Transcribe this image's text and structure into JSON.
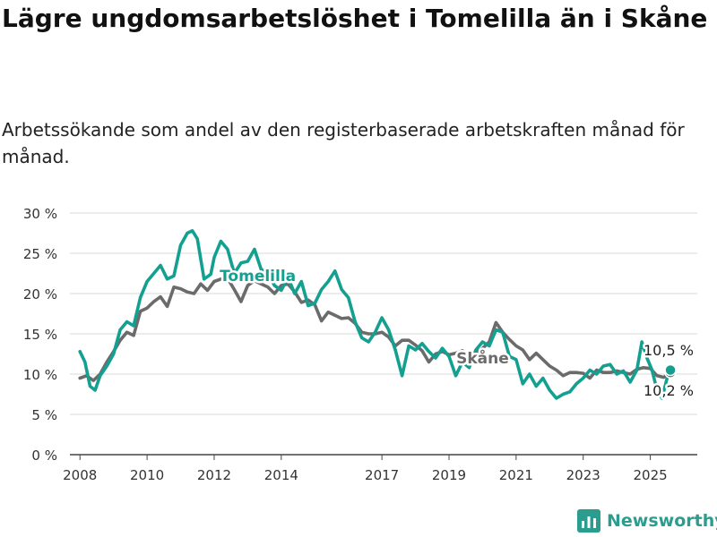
{
  "header": {
    "title": "Lägre ungdomsarbetslöshet i Tomelilla än i Skåne",
    "subtitle": "Arbetssökande som andel av den registerbaserade arbetskraften månad för månad."
  },
  "brand": {
    "name": "Newsworthy",
    "icon": "newsworthy-logo-icon"
  },
  "chart_data": {
    "type": "line",
    "title": "Lägre ungdomsarbetslöshet i Tomelilla än i Skåne",
    "subtitle": "Arbetssökande som andel av den registerbaserade arbetskraften månad för månad.",
    "xlim": [
      2007.7,
      2026.4
    ],
    "ylim": [
      0,
      30
    ],
    "y_ticks": [
      0,
      5,
      10,
      15,
      20,
      25,
      30
    ],
    "y_tick_labels": [
      "0 %",
      "5 %",
      "10 %",
      "15 %",
      "20 %",
      "25 %",
      "30 %"
    ],
    "x_ticks": [
      2008,
      2010,
      2012,
      2014,
      2017,
      2019,
      2021,
      2023,
      2025
    ],
    "x_tick_labels": [
      "2008",
      "2010",
      "2012",
      "2014",
      "2017",
      "2019",
      "2021",
      "2023",
      "2025"
    ],
    "grid": true,
    "legend": "none; series labeled directly on the lines",
    "series": [
      {
        "name": "Skåne",
        "color": "#6b6b6b",
        "end_label": "10,2 %",
        "points": [
          [
            2008.0,
            9.5
          ],
          [
            2008.2,
            9.8
          ],
          [
            2008.4,
            9.2
          ],
          [
            2008.6,
            10.0
          ],
          [
            2008.8,
            11.5
          ],
          [
            2009.0,
            12.8
          ],
          [
            2009.2,
            14.2
          ],
          [
            2009.4,
            15.2
          ],
          [
            2009.6,
            14.8
          ],
          [
            2009.8,
            17.8
          ],
          [
            2010.0,
            18.2
          ],
          [
            2010.2,
            19.0
          ],
          [
            2010.4,
            19.6
          ],
          [
            2010.6,
            18.4
          ],
          [
            2010.8,
            20.8
          ],
          [
            2011.0,
            20.6
          ],
          [
            2011.2,
            20.2
          ],
          [
            2011.4,
            20.0
          ],
          [
            2011.6,
            21.2
          ],
          [
            2011.8,
            20.4
          ],
          [
            2012.0,
            21.5
          ],
          [
            2012.2,
            21.8
          ],
          [
            2012.4,
            21.9
          ],
          [
            2012.6,
            20.5
          ],
          [
            2012.8,
            19.0
          ],
          [
            2013.0,
            21.0
          ],
          [
            2013.2,
            21.6
          ],
          [
            2013.4,
            21.2
          ],
          [
            2013.6,
            20.8
          ],
          [
            2013.8,
            20.0
          ],
          [
            2014.0,
            21.0
          ],
          [
            2014.2,
            21.2
          ],
          [
            2014.4,
            20.2
          ],
          [
            2014.6,
            18.9
          ],
          [
            2014.8,
            19.2
          ],
          [
            2015.0,
            18.6
          ],
          [
            2015.2,
            16.6
          ],
          [
            2015.4,
            17.7
          ],
          [
            2015.6,
            17.3
          ],
          [
            2015.8,
            16.9
          ],
          [
            2016.0,
            17.0
          ],
          [
            2016.2,
            16.3
          ],
          [
            2016.4,
            15.2
          ],
          [
            2016.6,
            15.0
          ],
          [
            2016.8,
            15.0
          ],
          [
            2017.0,
            15.2
          ],
          [
            2017.2,
            14.6
          ],
          [
            2017.4,
            13.5
          ],
          [
            2017.6,
            14.2
          ],
          [
            2017.8,
            14.2
          ],
          [
            2018.0,
            13.6
          ],
          [
            2018.2,
            12.9
          ],
          [
            2018.4,
            11.5
          ],
          [
            2018.6,
            12.5
          ],
          [
            2018.8,
            12.8
          ],
          [
            2019.0,
            12.4
          ],
          [
            2019.2,
            12.6
          ],
          [
            2019.4,
            12.9
          ],
          [
            2019.6,
            12.2
          ],
          [
            2019.8,
            12.6
          ],
          [
            2020.0,
            13.2
          ],
          [
            2020.2,
            14.0
          ],
          [
            2020.4,
            16.4
          ],
          [
            2020.6,
            15.2
          ],
          [
            2020.8,
            14.3
          ],
          [
            2021.0,
            13.5
          ],
          [
            2021.2,
            13.0
          ],
          [
            2021.4,
            11.8
          ],
          [
            2021.6,
            12.6
          ],
          [
            2021.8,
            11.8
          ],
          [
            2022.0,
            11.0
          ],
          [
            2022.2,
            10.5
          ],
          [
            2022.4,
            9.8
          ],
          [
            2022.6,
            10.2
          ],
          [
            2022.8,
            10.2
          ],
          [
            2023.0,
            10.1
          ],
          [
            2023.2,
            9.5
          ],
          [
            2023.4,
            10.5
          ],
          [
            2023.6,
            10.2
          ],
          [
            2023.8,
            10.2
          ],
          [
            2024.0,
            10.4
          ],
          [
            2024.2,
            10.2
          ],
          [
            2024.4,
            10.0
          ],
          [
            2024.6,
            10.6
          ],
          [
            2024.8,
            10.8
          ],
          [
            2025.0,
            10.7
          ],
          [
            2025.2,
            9.8
          ],
          [
            2025.4,
            9.6
          ],
          [
            2025.6,
            10.2
          ]
        ]
      },
      {
        "name": "Tomelilla",
        "color": "#14a091",
        "end_label": "10,5 %",
        "points": [
          [
            2008.0,
            12.8
          ],
          [
            2008.15,
            11.5
          ],
          [
            2008.3,
            8.5
          ],
          [
            2008.45,
            8.0
          ],
          [
            2008.6,
            9.8
          ],
          [
            2008.8,
            11.0
          ],
          [
            2009.0,
            12.5
          ],
          [
            2009.2,
            15.5
          ],
          [
            2009.4,
            16.5
          ],
          [
            2009.6,
            16.0
          ],
          [
            2009.8,
            19.5
          ],
          [
            2010.0,
            21.5
          ],
          [
            2010.2,
            22.5
          ],
          [
            2010.4,
            23.5
          ],
          [
            2010.6,
            21.8
          ],
          [
            2010.8,
            22.2
          ],
          [
            2011.0,
            26.0
          ],
          [
            2011.2,
            27.5
          ],
          [
            2011.35,
            27.8
          ],
          [
            2011.5,
            26.8
          ],
          [
            2011.7,
            21.8
          ],
          [
            2011.9,
            22.4
          ],
          [
            2012.0,
            24.5
          ],
          [
            2012.2,
            26.5
          ],
          [
            2012.4,
            25.5
          ],
          [
            2012.6,
            22.5
          ],
          [
            2012.8,
            23.8
          ],
          [
            2013.0,
            24.0
          ],
          [
            2013.2,
            25.5
          ],
          [
            2013.4,
            23.0
          ],
          [
            2013.6,
            22.5
          ],
          [
            2013.8,
            21.0
          ],
          [
            2014.0,
            20.4
          ],
          [
            2014.2,
            22.0
          ],
          [
            2014.4,
            20.0
          ],
          [
            2014.6,
            21.5
          ],
          [
            2014.8,
            18.5
          ],
          [
            2015.0,
            18.8
          ],
          [
            2015.2,
            20.5
          ],
          [
            2015.4,
            21.5
          ],
          [
            2015.6,
            22.8
          ],
          [
            2015.8,
            20.5
          ],
          [
            2016.0,
            19.5
          ],
          [
            2016.2,
            16.5
          ],
          [
            2016.4,
            14.5
          ],
          [
            2016.6,
            14.0
          ],
          [
            2016.8,
            15.2
          ],
          [
            2017.0,
            17.0
          ],
          [
            2017.2,
            15.5
          ],
          [
            2017.4,
            13.0
          ],
          [
            2017.6,
            9.8
          ],
          [
            2017.8,
            13.5
          ],
          [
            2018.0,
            13.0
          ],
          [
            2018.2,
            13.8
          ],
          [
            2018.4,
            12.8
          ],
          [
            2018.6,
            12.0
          ],
          [
            2018.8,
            13.2
          ],
          [
            2019.0,
            12.2
          ],
          [
            2019.2,
            9.8
          ],
          [
            2019.4,
            11.5
          ],
          [
            2019.6,
            10.8
          ],
          [
            2019.8,
            13.0
          ],
          [
            2020.0,
            14.0
          ],
          [
            2020.2,
            13.5
          ],
          [
            2020.4,
            15.5
          ],
          [
            2020.6,
            15.2
          ],
          [
            2020.8,
            12.2
          ],
          [
            2021.0,
            11.8
          ],
          [
            2021.2,
            8.8
          ],
          [
            2021.4,
            10.0
          ],
          [
            2021.6,
            8.5
          ],
          [
            2021.8,
            9.5
          ],
          [
            2022.0,
            8.0
          ],
          [
            2022.2,
            7.0
          ],
          [
            2022.4,
            7.5
          ],
          [
            2022.6,
            7.8
          ],
          [
            2022.8,
            8.8
          ],
          [
            2023.0,
            9.5
          ],
          [
            2023.2,
            10.5
          ],
          [
            2023.4,
            10.0
          ],
          [
            2023.6,
            11.0
          ],
          [
            2023.8,
            11.2
          ],
          [
            2024.0,
            10.0
          ],
          [
            2024.2,
            10.4
          ],
          [
            2024.4,
            9.0
          ],
          [
            2024.6,
            10.5
          ],
          [
            2024.75,
            14.0
          ],
          [
            2024.9,
            12.0
          ],
          [
            2025.05,
            10.5
          ],
          [
            2025.2,
            8.0
          ],
          [
            2025.35,
            7.0
          ],
          [
            2025.5,
            9.5
          ],
          [
            2025.6,
            10.5
          ]
        ]
      }
    ]
  }
}
